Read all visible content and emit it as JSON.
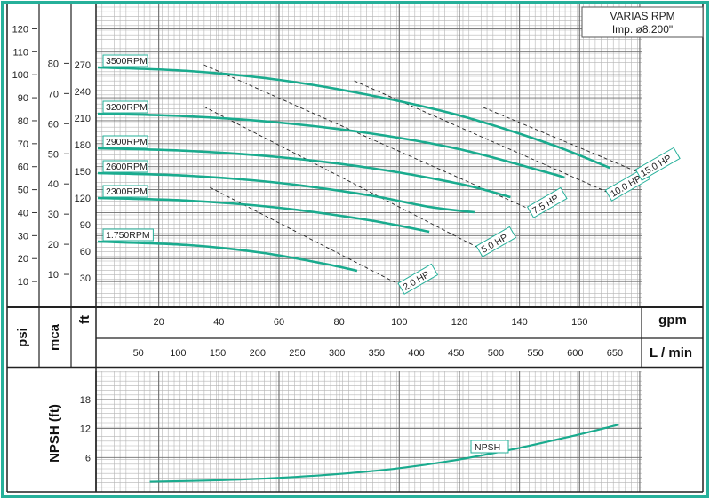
{
  "title_box": {
    "line1": "VARIAS RPM",
    "line2": "Imp. ø8.200\""
  },
  "chart_data": {
    "type": "line",
    "head_chart": {
      "x_unit": "gpm",
      "x_alt_unit": "L / min",
      "y_units": [
        "psi",
        "mca",
        "ft"
      ],
      "x_ticks_gpm": [
        20,
        40,
        60,
        80,
        100,
        120,
        140,
        160
      ],
      "x_ticks_lmin": [
        50,
        100,
        150,
        200,
        250,
        300,
        350,
        400,
        450,
        500,
        550,
        600,
        650
      ],
      "y_ticks_psi": [
        10,
        20,
        30,
        40,
        50,
        60,
        70,
        80,
        90,
        100,
        110,
        120
      ],
      "y_ticks_mca": [
        10,
        20,
        30,
        40,
        50,
        60,
        70,
        80
      ],
      "y_ticks_ft": [
        30,
        60,
        90,
        120,
        150,
        180,
        210,
        240,
        270
      ],
      "xlim_gpm": [
        0,
        180
      ],
      "ylim_ft": [
        0,
        285
      ],
      "series": [
        {
          "name": "3500RPM",
          "points": [
            [
              0,
              267
            ],
            [
              30,
              263
            ],
            [
              60,
              253
            ],
            [
              90,
              236
            ],
            [
              120,
              213
            ],
            [
              150,
              181
            ],
            [
              170,
              154
            ]
          ]
        },
        {
          "name": "3200RPM",
          "points": [
            [
              0,
              215
            ],
            [
              30,
              212
            ],
            [
              60,
              205
            ],
            [
              90,
              193
            ],
            [
              120,
              175
            ],
            [
              150,
              148
            ],
            [
              155,
              143
            ]
          ]
        },
        {
          "name": "2900RPM",
          "points": [
            [
              0,
              176
            ],
            [
              30,
              173
            ],
            [
              60,
              166
            ],
            [
              90,
              154
            ],
            [
              120,
              136
            ],
            [
              137,
              121
            ]
          ]
        },
        {
          "name": "2600RPM",
          "points": [
            [
              0,
              148
            ],
            [
              30,
              145
            ],
            [
              60,
              137
            ],
            [
              90,
              123
            ],
            [
              110,
              110
            ],
            [
              125,
              104
            ]
          ]
        },
        {
          "name": "2300RPM",
          "points": [
            [
              0,
              120
            ],
            [
              30,
              117
            ],
            [
              60,
              109
            ],
            [
              90,
              95
            ],
            [
              110,
              82
            ]
          ]
        },
        {
          "name": "1.750RPM",
          "points": [
            [
              0,
              71
            ],
            [
              30,
              67
            ],
            [
              55,
              58
            ],
            [
              75,
              46
            ],
            [
              86,
              38
            ]
          ]
        }
      ],
      "hp_lines": [
        {
          "name": "2.0 HP",
          "points": [
            [
              37,
              132
            ],
            [
              102,
              19
            ]
          ]
        },
        {
          "name": "5.0 HP",
          "points": [
            [
              35,
              223
            ],
            [
              128,
              61
            ]
          ]
        },
        {
          "name": "7.5 HP",
          "points": [
            [
              35,
              270
            ],
            [
              145,
              105
            ]
          ]
        },
        {
          "name": "10.0 HP",
          "points": [
            [
              85,
              252
            ],
            [
              171,
              124
            ]
          ]
        },
        {
          "name": "15.0 HP",
          "points": [
            [
              128,
              222
            ],
            [
              181,
              147
            ]
          ]
        }
      ]
    },
    "npsh_chart": {
      "ylabel": "NPSH (ft)",
      "y_ticks": [
        6,
        12,
        18
      ],
      "ylim": [
        0,
        24
      ],
      "series": [
        {
          "name": "NPSH",
          "points": [
            [
              17,
              1.0
            ],
            [
              40,
              1.3
            ],
            [
              60,
              1.8
            ],
            [
              80,
              2.6
            ],
            [
              100,
              3.8
            ],
            [
              120,
              5.6
            ],
            [
              140,
              8.0
            ],
            [
              160,
              10.8
            ],
            [
              173,
              12.8
            ]
          ]
        }
      ]
    }
  },
  "colors": {
    "border": "#26b09a",
    "curve": "#1aab8e",
    "grid_major": "#6b6b6b",
    "grid_minor": "#b5b5b5",
    "hp_line": "#222222"
  }
}
